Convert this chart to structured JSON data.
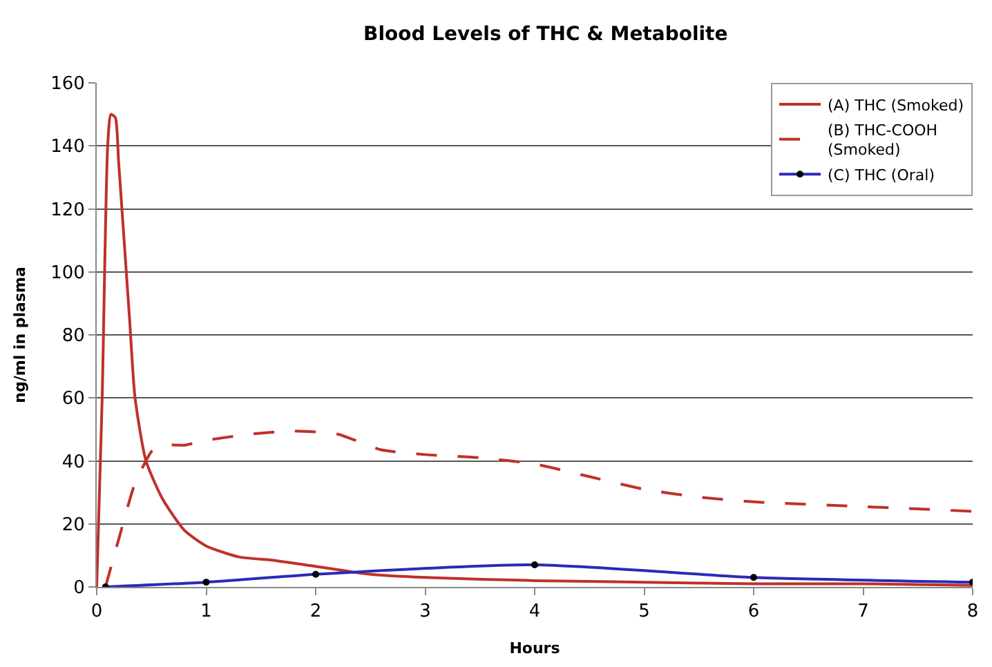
{
  "chart_data": {
    "type": "line",
    "title": "Blood Levels of THC & Metabolite",
    "xlabel": "Hours",
    "ylabel": "ng/ml in plasma",
    "xlim": [
      0,
      8
    ],
    "xticks": [
      0,
      1,
      2,
      3,
      4,
      5,
      6,
      7,
      8
    ],
    "ylim": [
      0,
      160
    ],
    "yticks": [
      0,
      20,
      40,
      60,
      80,
      100,
      120,
      140,
      160
    ],
    "grid": "y",
    "legend": "top right",
    "series": [
      {
        "name": "(A) THC (Smoked)",
        "color": "#c0302a",
        "line_style": "solid",
        "marker": "none",
        "x": [
          0,
          0.05,
          0.1,
          0.13,
          0.17,
          0.2,
          0.3,
          0.35,
          0.45,
          0.6,
          0.8,
          1,
          1.3,
          1.6,
          2,
          2.5,
          3,
          4,
          5,
          6,
          7,
          8
        ],
        "values": [
          0,
          60,
          140,
          150,
          149,
          135,
          85,
          60,
          40,
          28,
          18,
          13,
          9.5,
          8.5,
          6.5,
          4,
          3,
          2,
          1.5,
          1,
          1,
          0.5
        ]
      },
      {
        "name": "(B) THC-COOH\n(Smoked)",
        "color": "#c0302a",
        "line_style": "dashed",
        "marker": "none",
        "x": [
          0.08,
          0.2,
          0.35,
          0.45,
          0.5,
          0.6,
          0.8,
          1,
          1.4,
          1.8,
          2.2,
          2.4,
          2.6,
          3,
          3.5,
          4,
          4.5,
          5,
          5.5,
          6,
          7,
          8
        ],
        "values": [
          0,
          15,
          33,
          40,
          43,
          45,
          45,
          46.5,
          48.5,
          49.5,
          48.5,
          46,
          43.5,
          42,
          41,
          39,
          35,
          31,
          28.5,
          27,
          25.5,
          24
        ]
      },
      {
        "name": "(C) THC (Oral)",
        "color": "#2a2ab8",
        "line_style": "solid",
        "marker": "circle",
        "x": [
          0.08,
          1,
          2,
          4,
          6,
          8
        ],
        "values": [
          0,
          1.5,
          4,
          7,
          3,
          1.5
        ]
      }
    ]
  }
}
